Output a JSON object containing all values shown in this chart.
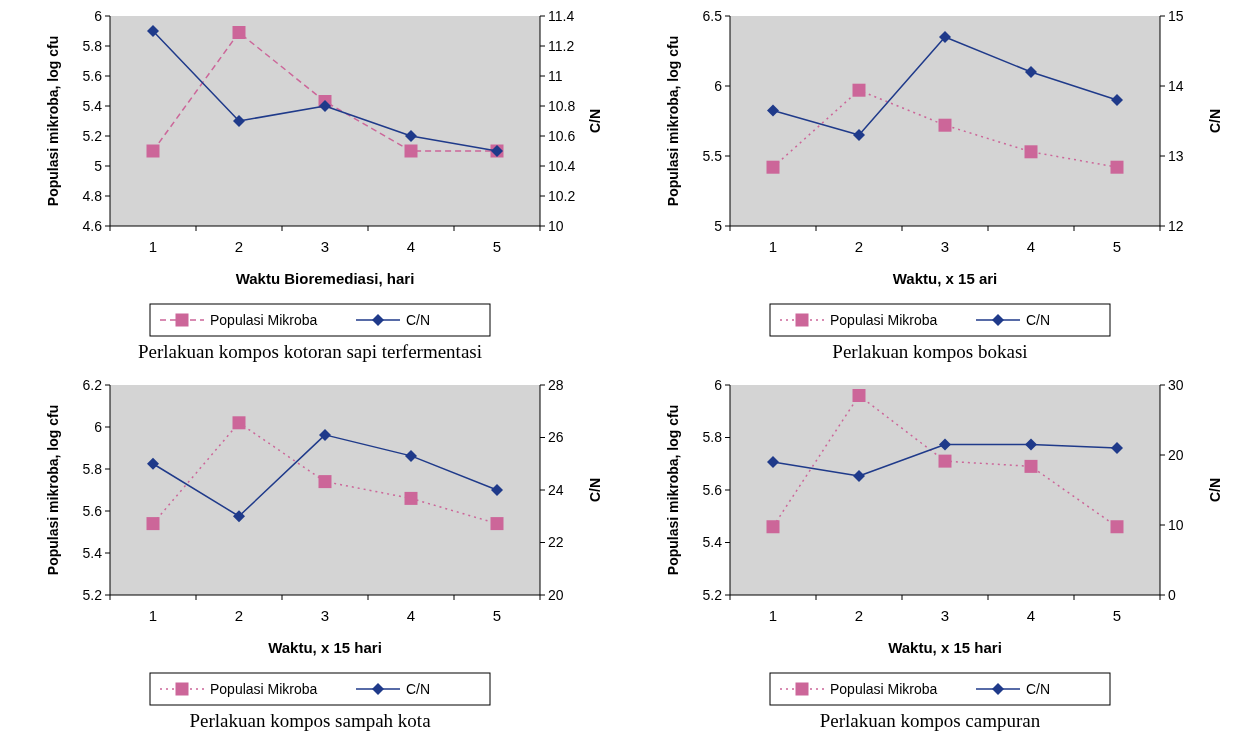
{
  "chart_data": [
    {
      "type": "line",
      "categories": [
        "1",
        "2",
        "3",
        "4",
        "5"
      ],
      "xlabel": "Waktu Bioremediasi, hari",
      "ylabel": "Populasi mikroba, log cfu",
      "y2label": "C/N",
      "ylim": [
        4.6,
        6
      ],
      "yticks": [
        4.6,
        4.8,
        5,
        5.2,
        5.4,
        5.6,
        5.8,
        6
      ],
      "y2lim": [
        10,
        11.4
      ],
      "y2ticks": [
        10,
        10.2,
        10.4,
        10.6,
        10.8,
        11,
        11.2,
        11.4
      ],
      "legend": "bottom",
      "annotations": [
        "Perlakuan kompos kotoran sapi terfermentasi"
      ],
      "series": [
        {
          "name": "Populasi Mikroba",
          "color": "#cc6699",
          "marker": "square",
          "line_style": "dashed",
          "values": [
            5.1,
            5.89,
            5.43,
            5.1,
            5.1
          ]
        },
        {
          "name": "C/N",
          "color": "#1f3a8a",
          "marker": "diamond",
          "line_style": "solid",
          "axis": "y2",
          "values": [
            11.3,
            10.7,
            10.8,
            10.6,
            10.5
          ]
        }
      ]
    },
    {
      "type": "line",
      "categories": [
        "1",
        "2",
        "3",
        "4",
        "5"
      ],
      "xlabel": "Waktu, x 15 ari",
      "ylabel": "Populasi mikroba, log cfu",
      "y2label": "C/N",
      "ylim": [
        5,
        6.5
      ],
      "yticks": [
        5,
        5.5,
        6,
        6.5
      ],
      "y2lim": [
        12,
        15
      ],
      "y2ticks": [
        12,
        13,
        14,
        15
      ],
      "legend": "bottom",
      "annotations": [
        "Perlakuan kompos bokasi"
      ],
      "series": [
        {
          "name": "Populasi Mikroba",
          "color": "#cc6699",
          "marker": "square",
          "line_style": "dotted",
          "values": [
            5.42,
            5.97,
            5.72,
            5.53,
            5.42
          ]
        },
        {
          "name": "C/N",
          "color": "#1f3a8a",
          "marker": "diamond",
          "line_style": "solid",
          "axis": "y2",
          "values": [
            13.65,
            13.3,
            14.7,
            14.2,
            13.8
          ]
        }
      ]
    },
    {
      "type": "line",
      "categories": [
        "1",
        "2",
        "3",
        "4",
        "5"
      ],
      "xlabel": "Waktu, x 15 hari",
      "ylabel": "Populasi mikroba, log cfu",
      "y2label": "C/N",
      "ylim": [
        5.2,
        6.2
      ],
      "yticks": [
        5.2,
        5.4,
        5.6,
        5.8,
        6,
        6.2
      ],
      "y2lim": [
        20,
        28
      ],
      "y2ticks": [
        20,
        22,
        24,
        26,
        28
      ],
      "legend": "bottom",
      "annotations": [
        "Perlakuan kompos sampah kota"
      ],
      "series": [
        {
          "name": "Populasi Mikroba",
          "color": "#cc6699",
          "marker": "square",
          "line_style": "dotted",
          "values": [
            5.54,
            6.02,
            5.74,
            5.66,
            5.54
          ]
        },
        {
          "name": "C/N",
          "color": "#1f3a8a",
          "marker": "diamond",
          "line_style": "solid",
          "axis": "y2",
          "values": [
            25,
            23,
            26.1,
            25.3,
            24
          ]
        }
      ]
    },
    {
      "type": "line",
      "categories": [
        "1",
        "2",
        "3",
        "4",
        "5"
      ],
      "xlabel": "Waktu, x 15 hari",
      "ylabel": "Populasi mikroba, log cfu",
      "y2label": "C/N",
      "ylim": [
        5.2,
        6
      ],
      "yticks": [
        5.2,
        5.4,
        5.6,
        5.8,
        6
      ],
      "y2lim": [
        0,
        30
      ],
      "y2ticks": [
        0,
        10,
        20,
        30
      ],
      "legend": "bottom",
      "annotations": [
        "Perlakuan kompos campuran"
      ],
      "series": [
        {
          "name": "Populasi Mikroba",
          "color": "#cc6699",
          "marker": "square",
          "line_style": "dotted",
          "values": [
            5.46,
            5.96,
            5.71,
            5.69,
            5.46
          ]
        },
        {
          "name": "C/N",
          "color": "#1f3a8a",
          "marker": "diamond",
          "line_style": "solid",
          "axis": "y2",
          "values": [
            19,
            17,
            21.5,
            21.5,
            21
          ]
        }
      ]
    }
  ]
}
